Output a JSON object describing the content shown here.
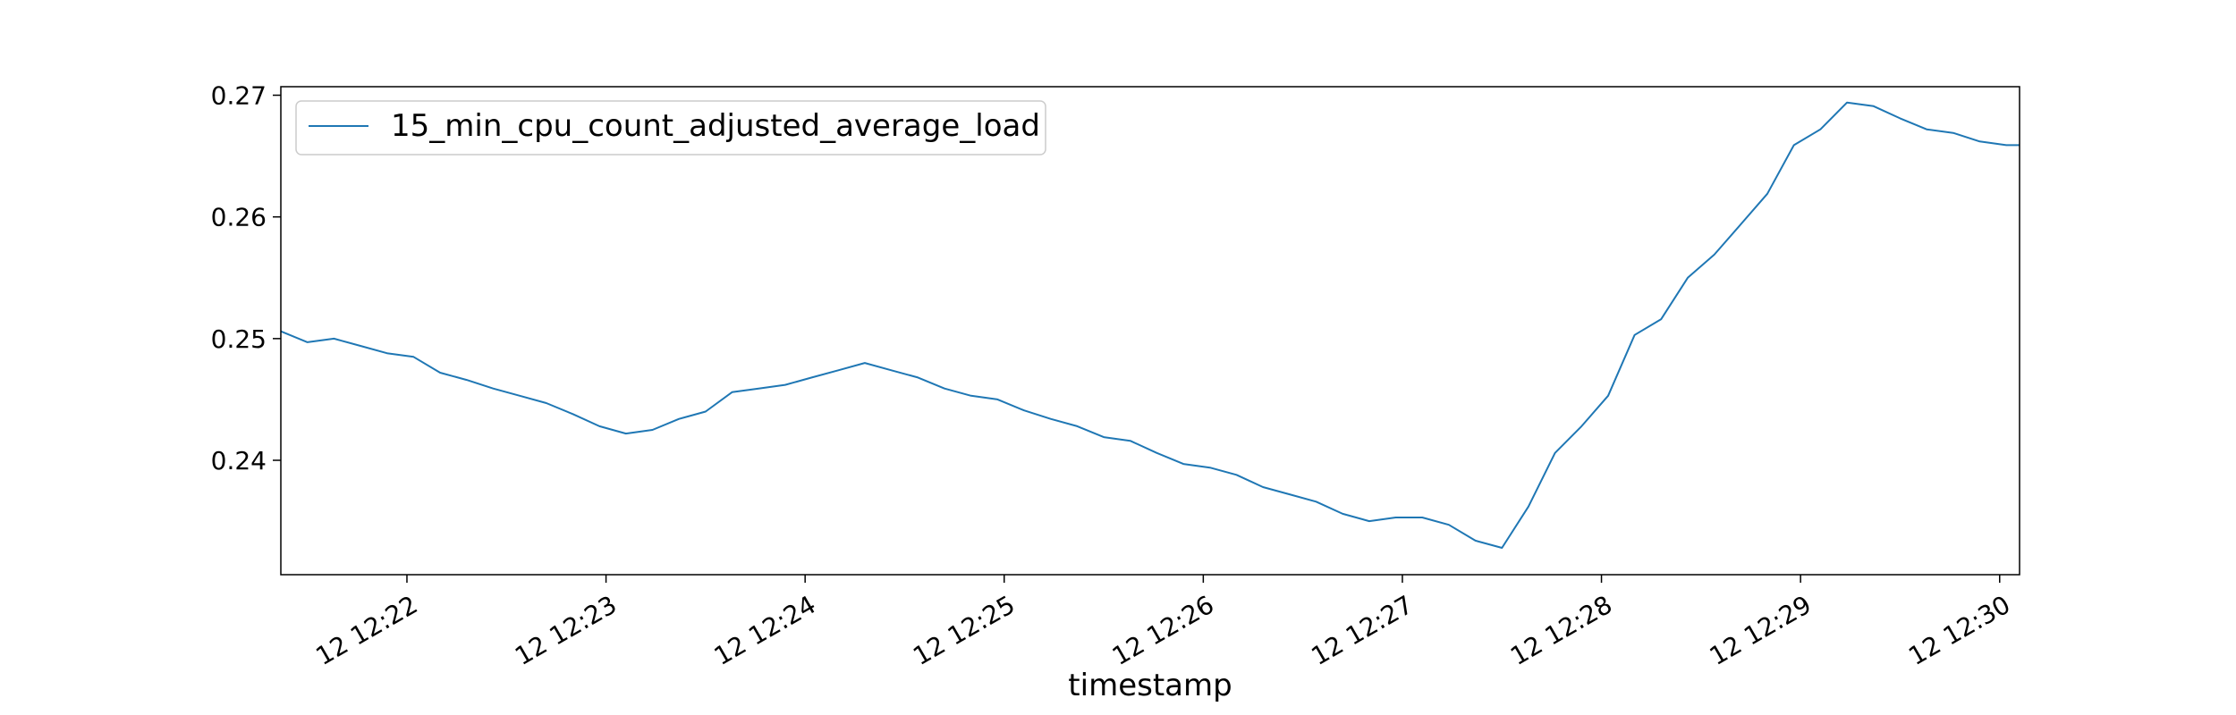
{
  "chart_data": {
    "type": "line",
    "title": "",
    "xlabel": "timestamp",
    "ylabel": "",
    "x_ticks": [
      "12 12:22",
      "12 12:23",
      "12 12:24",
      "12 12:25",
      "12 12:26",
      "12 12:27",
      "12 12:28",
      "12 12:29",
      "12 12:30"
    ],
    "y_ticks": [
      "0.24",
      "0.25",
      "0.26",
      "0.27"
    ],
    "x_tick_times": [
      "12:22:00",
      "12:23:00",
      "12:24:00",
      "12:25:00",
      "12:26:00",
      "12:27:00",
      "12:28:00",
      "12:29:00",
      "12:30:00"
    ],
    "xlim": [
      "12:21:22",
      "12:30:06"
    ],
    "ylim": [
      0.2306,
      0.2707
    ],
    "grid": false,
    "legend_position": "upper-left",
    "line_color": "#1f77b4",
    "series": [
      {
        "name": "15_min_cpu_count_adjusted_average_load",
        "x": [
          "12:21:22",
          "12:21:30",
          "12:21:38",
          "12:21:46",
          "12:21:54",
          "12:22:02",
          "12:22:10",
          "12:22:18",
          "12:22:26",
          "12:22:34",
          "12:22:42",
          "12:22:50",
          "12:22:58",
          "12:23:06",
          "12:23:14",
          "12:23:22",
          "12:23:30",
          "12:23:38",
          "12:23:46",
          "12:23:54",
          "12:24:02",
          "12:24:10",
          "12:24:18",
          "12:24:26",
          "12:24:34",
          "12:24:42",
          "12:24:50",
          "12:24:58",
          "12:25:06",
          "12:25:14",
          "12:25:22",
          "12:25:30",
          "12:25:38",
          "12:25:46",
          "12:25:54",
          "12:26:02",
          "12:26:10",
          "12:26:18",
          "12:26:26",
          "12:26:34",
          "12:26:42",
          "12:26:50",
          "12:26:58",
          "12:27:06",
          "12:27:14",
          "12:27:22",
          "12:27:30",
          "12:27:38",
          "12:27:46",
          "12:27:54",
          "12:28:02",
          "12:28:10",
          "12:28:18",
          "12:28:26",
          "12:28:34",
          "12:28:42",
          "12:28:50",
          "12:28:58",
          "12:29:06",
          "12:29:14",
          "12:29:22",
          "12:29:30",
          "12:29:38",
          "12:29:46",
          "12:29:54",
          "12:30:02",
          "12:30:06"
        ],
        "y": [
          0.2506,
          0.2497,
          0.25,
          0.2494,
          0.2488,
          0.2485,
          0.2472,
          0.2466,
          0.2459,
          0.2453,
          0.2447,
          0.2438,
          0.2428,
          0.2422,
          0.2425,
          0.2434,
          0.244,
          0.2456,
          0.2459,
          0.2462,
          0.2468,
          0.2474,
          0.248,
          0.2474,
          0.2468,
          0.2459,
          0.2453,
          0.245,
          0.2441,
          0.2434,
          0.2428,
          0.2419,
          0.2416,
          0.2406,
          0.2397,
          0.2394,
          0.2388,
          0.2378,
          0.2372,
          0.2366,
          0.2356,
          0.235,
          0.2353,
          0.2353,
          0.2347,
          0.2334,
          0.2328,
          0.2362,
          0.2406,
          0.2428,
          0.2453,
          0.2503,
          0.2516,
          0.255,
          0.2569,
          0.2594,
          0.2619,
          0.2659,
          0.2672,
          0.2694,
          0.2691,
          0.2681,
          0.2672,
          0.2669,
          0.2662,
          0.2659,
          0.2659
        ]
      }
    ]
  }
}
